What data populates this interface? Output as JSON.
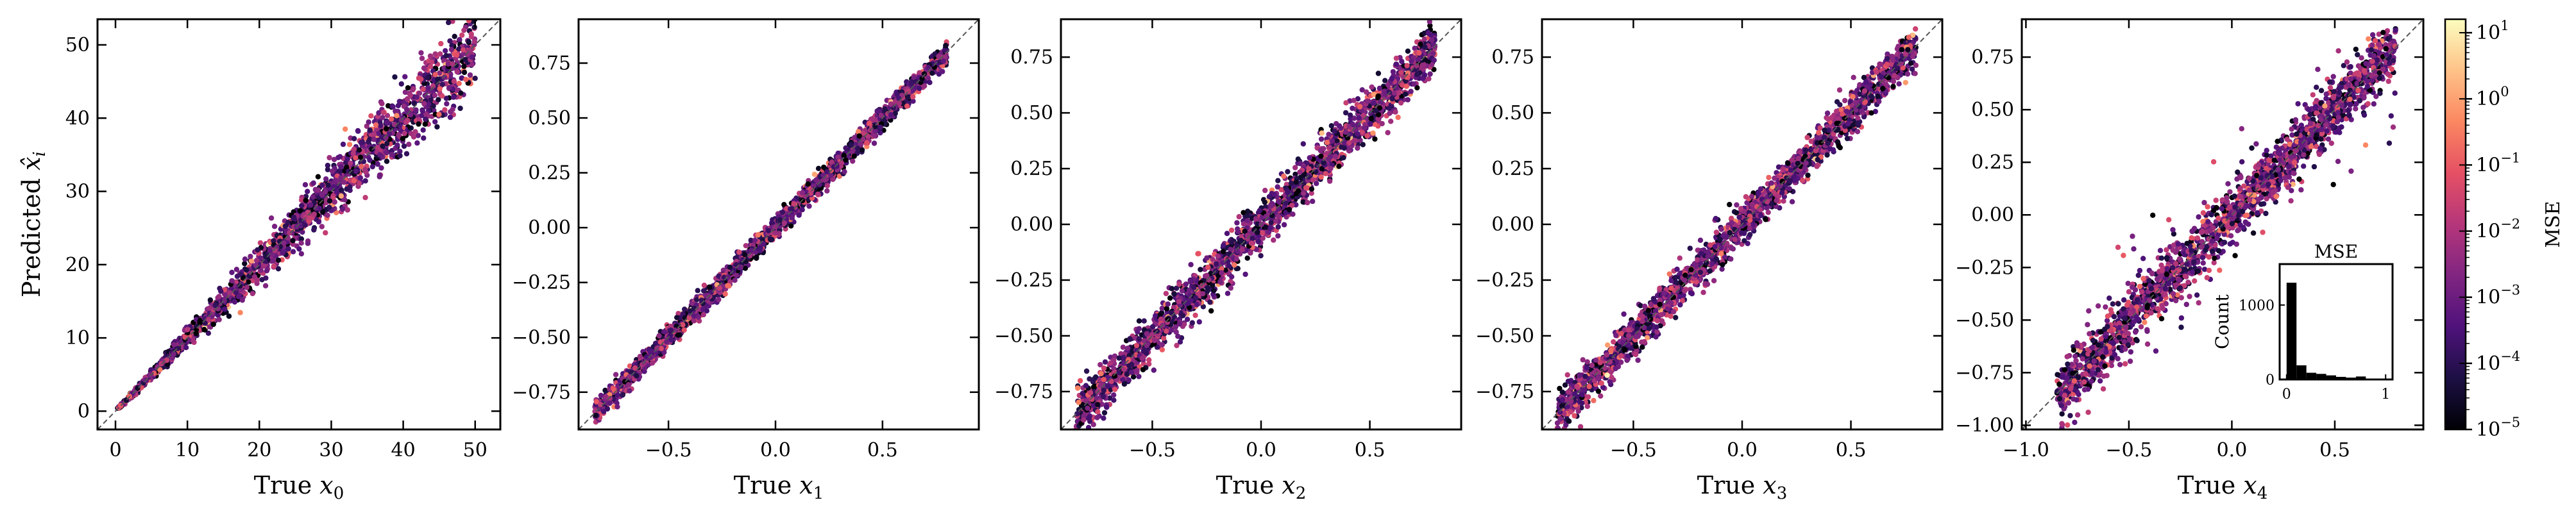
{
  "chart_data": [
    {
      "type": "scatter",
      "xlabel_prefix": "True ",
      "xlabel_sub": "0",
      "ylabel_prefix": "Predicted ",
      "ylabel_hat": "x̂",
      "ylabel_sub": "i",
      "xlim": [
        -2.5,
        53.5
      ],
      "ylim": [
        -2.5,
        53.5
      ],
      "xticks": [
        0,
        10,
        20,
        30,
        40,
        50
      ],
      "yticks": [
        0,
        10,
        20,
        30,
        40,
        50
      ],
      "xtick_labels": [
        "0",
        "10",
        "20",
        "30",
        "40",
        "50"
      ],
      "ytick_labels": [
        "0",
        "10",
        "20",
        "30",
        "40",
        "50"
      ],
      "reference_line": "y = x",
      "points": {
        "count": 2000,
        "x_range": [
          0.3,
          50
        ],
        "spread": 0.055,
        "spread_mode": "relative"
      }
    },
    {
      "type": "scatter",
      "xlabel_prefix": "True ",
      "xlabel_sub": "1",
      "xlim": [
        -0.92,
        0.95
      ],
      "ylim": [
        -0.92,
        0.95
      ],
      "xticks": [
        -0.5,
        0,
        0.5
      ],
      "yticks": [
        -0.75,
        -0.5,
        -0.25,
        0,
        0.25,
        0.5,
        0.75
      ],
      "xtick_labels": [
        "−0.5",
        "0.0",
        "0.5"
      ],
      "ytick_labels": [
        "−0.75",
        "−0.50",
        "−0.25",
        "0.00",
        "0.25",
        "0.50",
        "0.75"
      ],
      "reference_line": "y = x",
      "points": {
        "count": 2000,
        "x_range": [
          -0.85,
          0.8
        ],
        "spread": 0.025,
        "spread_mode": "absolute"
      }
    },
    {
      "type": "scatter",
      "xlabel_prefix": "True ",
      "xlabel_sub": "2",
      "xlim": [
        -0.92,
        0.92
      ],
      "ylim": [
        -0.92,
        0.92
      ],
      "xticks": [
        -0.5,
        0,
        0.5
      ],
      "yticks": [
        -0.75,
        -0.5,
        -0.25,
        0,
        0.25,
        0.5,
        0.75
      ],
      "xtick_labels": [
        "−0.5",
        "0.0",
        "0.5"
      ],
      "ytick_labels": [
        "−0.75",
        "−0.50",
        "−0.25",
        "0.00",
        "0.25",
        "0.50",
        "0.75"
      ],
      "reference_line": "y = x",
      "points": {
        "count": 2000,
        "x_range": [
          -0.85,
          0.8
        ],
        "spread": 0.055,
        "spread_mode": "absolute"
      }
    },
    {
      "type": "scatter",
      "xlabel_prefix": "True ",
      "xlabel_sub": "3",
      "xlim": [
        -0.92,
        0.92
      ],
      "ylim": [
        -0.92,
        0.92
      ],
      "xticks": [
        -0.5,
        0,
        0.5
      ],
      "yticks": [
        -0.75,
        -0.5,
        -0.25,
        0,
        0.25,
        0.5,
        0.75
      ],
      "xtick_labels": [
        "−0.5",
        "0.0",
        "0.5"
      ],
      "ytick_labels": [
        "−0.75",
        "−0.50",
        "−0.25",
        "0.00",
        "0.25",
        "0.50",
        "0.75"
      ],
      "reference_line": "y = x",
      "points": {
        "count": 2000,
        "x_range": [
          -0.85,
          0.8
        ],
        "spread": 0.045,
        "spread_mode": "absolute"
      }
    },
    {
      "type": "scatter",
      "xlabel_prefix": "True ",
      "xlabel_sub": "4",
      "xlim": [
        -1.02,
        0.93
      ],
      "ylim": [
        -1.02,
        0.93
      ],
      "xticks": [
        -1.0,
        -0.5,
        0,
        0.5
      ],
      "yticks": [
        -1.0,
        -0.75,
        -0.5,
        -0.25,
        0,
        0.25,
        0.5,
        0.75
      ],
      "xtick_labels": [
        "−1.0",
        "−0.5",
        "0.0",
        "0.5"
      ],
      "ytick_labels": [
        "−1.00",
        "−0.75",
        "−0.50",
        "−0.25",
        "0.00",
        "0.25",
        "0.50",
        "0.75"
      ],
      "reference_line": "y = x",
      "points": {
        "count": 2000,
        "x_range": [
          -0.85,
          0.8
        ],
        "spread": 0.07,
        "spread_mode": "absolute"
      },
      "inset_histogram": {
        "type": "bar",
        "title": "MSE",
        "ylabel": "Count",
        "xticks": [
          0,
          1
        ],
        "xtick_labels": [
          "0",
          "1"
        ],
        "yticks": [
          0,
          1000
        ],
        "ytick_labels": [
          "0",
          "1000"
        ],
        "ylim": [
          0,
          1550
        ],
        "bin_edges": [
          0,
          0.1,
          0.2,
          0.3,
          0.4,
          0.5,
          0.6,
          0.7,
          0.8,
          0.9,
          1.0
        ],
        "counts": [
          1300,
          190,
          90,
          75,
          55,
          35,
          25,
          40,
          10,
          5
        ]
      }
    }
  ],
  "colorbar": {
    "label": "MSE",
    "scale": "log",
    "colormap": "magma",
    "range": [
      1e-05,
      16
    ],
    "ticks": [
      {
        "value": 1e-05,
        "exp": "−5"
      },
      {
        "value": 0.0001,
        "exp": "−4"
      },
      {
        "value": 0.001,
        "exp": "−3"
      },
      {
        "value": 0.01,
        "exp": "−2"
      },
      {
        "value": 0.1,
        "exp": "−1"
      },
      {
        "value": 1,
        "exp": "0"
      },
      {
        "value": 10,
        "exp": "1"
      }
    ],
    "colormap_stops": [
      "#000004",
      "#1c1044",
      "#4f127b",
      "#812581",
      "#b5367a",
      "#e55064",
      "#fb8761",
      "#fec287",
      "#fcfdbf"
    ]
  }
}
